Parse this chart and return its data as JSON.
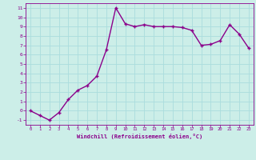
{
  "x": [
    0,
    1,
    2,
    3,
    4,
    5,
    6,
    7,
    8,
    9,
    10,
    11,
    12,
    13,
    14,
    15,
    16,
    17,
    18,
    19,
    20,
    21,
    22,
    23
  ],
  "y": [
    0.0,
    -0.5,
    -1.0,
    -0.2,
    1.2,
    2.2,
    2.7,
    3.7,
    6.5,
    11.0,
    9.3,
    9.0,
    9.2,
    9.0,
    9.0,
    9.0,
    8.9,
    8.6,
    7.0,
    7.1,
    7.5,
    9.2,
    8.2,
    6.7
  ],
  "line_color": "#8B008B",
  "marker": "+",
  "marker_color": "#8B008B",
  "bg_color": "#cceee8",
  "grid_color": "#aadddd",
  "xlabel": "Windchill (Refroidissement éolien,°C)",
  "xlim": [
    -0.5,
    23.5
  ],
  "ylim": [
    -1.5,
    11.5
  ],
  "xticks": [
    0,
    1,
    2,
    3,
    4,
    5,
    6,
    7,
    8,
    9,
    10,
    11,
    12,
    13,
    14,
    15,
    16,
    17,
    18,
    19,
    20,
    21,
    22,
    23
  ],
  "yticks": [
    -1,
    0,
    1,
    2,
    3,
    4,
    5,
    6,
    7,
    8,
    9,
    10,
    11
  ],
  "line_color_hex": "#880088",
  "linewidth": 1.0,
  "markersize": 3.5
}
